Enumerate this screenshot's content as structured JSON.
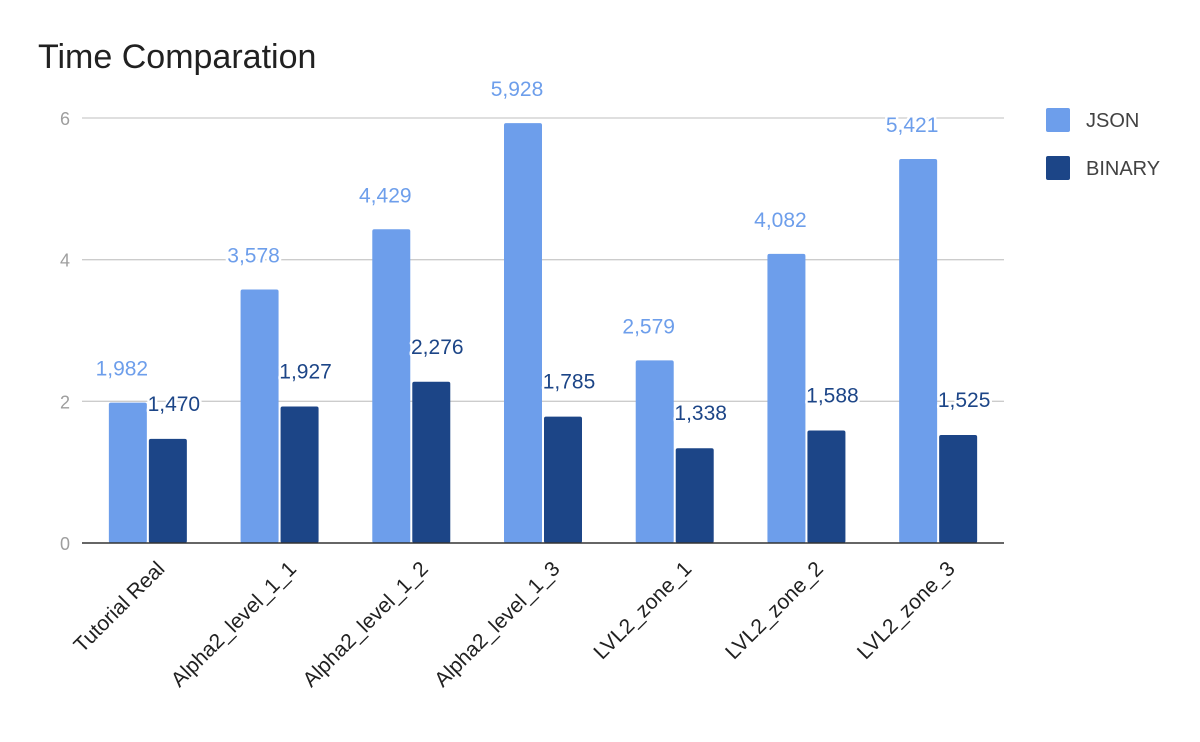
{
  "chart_data": {
    "type": "bar",
    "title": "Time Comparation",
    "xlabel": "",
    "ylabel": "",
    "categories": [
      "Tutorial Real",
      "Alpha2_level_1_1",
      "Alpha2_level_1_2",
      "Alpha2_level_1_3",
      "LVL2_zone_1",
      "LVL2_zone_2",
      "LVL2_zone_3"
    ],
    "series": [
      {
        "name": "JSON",
        "color": "#6d9eeb",
        "values": [
          1.982,
          3.578,
          4.429,
          5.928,
          2.579,
          4.082,
          5.421
        ],
        "labels": [
          "1,982",
          "3,578",
          "4,429",
          "5,928",
          "2,579",
          "4,082",
          "5,421"
        ]
      },
      {
        "name": "BINARY",
        "color": "#1c4587",
        "values": [
          1.47,
          1.927,
          2.276,
          1.785,
          1.338,
          1.588,
          1.525
        ],
        "labels": [
          "1,470",
          "1,927",
          "2,276",
          "1,785",
          "1,338",
          "1,588",
          "1,525"
        ]
      }
    ],
    "ylim": [
      0,
      6
    ],
    "yticks": [
      "0",
      "2",
      "4",
      "6"
    ],
    "ytick_values": [
      0,
      2,
      4,
      6
    ],
    "grid": true,
    "legend_position": "right"
  }
}
